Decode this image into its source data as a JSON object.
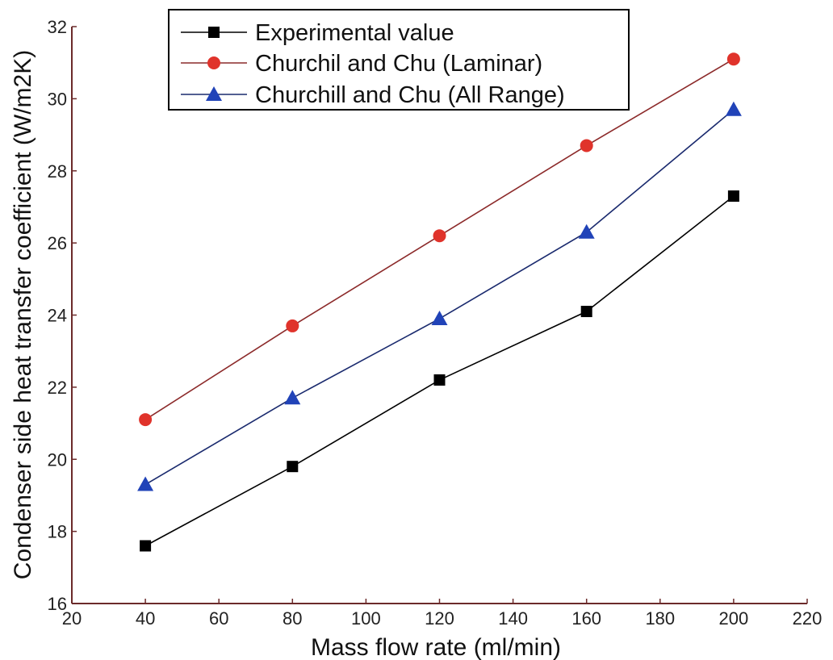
{
  "chart_data": {
    "type": "line",
    "xlabel": "Mass flow rate (ml/min)",
    "ylabel": "Condenser side heat transfer coefficient (W/m2K)",
    "xlim": [
      20,
      220
    ],
    "ylim": [
      16,
      32
    ],
    "x_ticks": [
      20,
      40,
      60,
      80,
      100,
      120,
      140,
      160,
      180,
      200,
      220
    ],
    "y_ticks": [
      16,
      18,
      20,
      22,
      24,
      26,
      28,
      30,
      32
    ],
    "grid": false,
    "legend_position": "top-left",
    "x": [
      40,
      80,
      120,
      160,
      200
    ],
    "series": [
      {
        "name": "Experimental value",
        "values": [
          17.6,
          19.8,
          22.2,
          24.1,
          27.3
        ],
        "marker": "square",
        "marker_color": "#000000",
        "line_color": "#000000"
      },
      {
        "name": "Churchil and Chu (Laminar)",
        "values": [
          21.1,
          23.7,
          26.2,
          28.7,
          31.1
        ],
        "marker": "circle",
        "marker_color": "#e0332b",
        "line_color": "#8c2a2a"
      },
      {
        "name": "Churchill and Chu (All Range)",
        "values": [
          19.3,
          21.7,
          23.9,
          26.3,
          29.7
        ],
        "marker": "triangle",
        "marker_color": "#2143b8",
        "line_color": "#1a2a6e"
      }
    ]
  }
}
